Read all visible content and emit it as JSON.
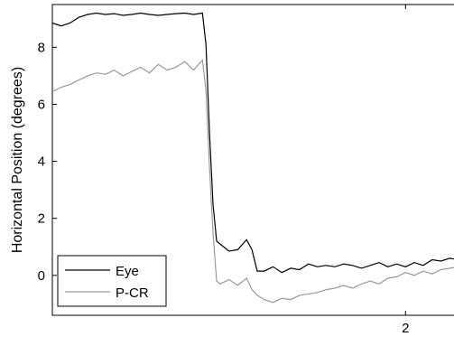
{
  "chart_data": {
    "type": "line",
    "title": "",
    "xlabel": "",
    "ylabel": "Horizontal Position (degrees)",
    "xlim": [
      0.0,
      2.3
    ],
    "ylim": [
      -1.4,
      9.5
    ],
    "yticks": [
      0,
      2,
      4,
      6,
      8
    ],
    "xticks": [
      2
    ],
    "grid": false,
    "legend": "bottom-left",
    "series": [
      {
        "name": "Eye",
        "color": "#000000",
        "x": [
          0.0,
          0.05,
          0.1,
          0.15,
          0.2,
          0.25,
          0.3,
          0.35,
          0.4,
          0.45,
          0.5,
          0.55,
          0.6,
          0.65,
          0.7,
          0.75,
          0.8,
          0.85,
          0.87,
          0.89,
          0.91,
          0.93,
          0.95,
          1.0,
          1.05,
          1.1,
          1.13,
          1.16,
          1.2,
          1.25,
          1.3,
          1.35,
          1.4,
          1.45,
          1.5,
          1.55,
          1.6,
          1.65,
          1.7,
          1.75,
          1.8,
          1.85,
          1.9,
          1.95,
          2.0,
          2.05,
          2.1,
          2.15,
          2.2,
          2.25,
          2.3
        ],
        "values": [
          8.85,
          8.75,
          8.85,
          9.05,
          9.15,
          9.2,
          9.15,
          9.18,
          9.12,
          9.15,
          9.2,
          9.15,
          9.12,
          9.15,
          9.18,
          9.2,
          9.15,
          9.2,
          8.1,
          5.0,
          2.5,
          1.2,
          1.1,
          0.85,
          0.9,
          1.25,
          0.9,
          0.15,
          0.15,
          0.3,
          0.1,
          0.25,
          0.2,
          0.4,
          0.3,
          0.35,
          0.3,
          0.4,
          0.35,
          0.25,
          0.35,
          0.45,
          0.3,
          0.4,
          0.3,
          0.45,
          0.35,
          0.55,
          0.5,
          0.6,
          0.55
        ]
      },
      {
        "name": "P-CR",
        "color": "#999999",
        "x": [
          0.0,
          0.05,
          0.1,
          0.15,
          0.2,
          0.25,
          0.3,
          0.35,
          0.4,
          0.45,
          0.5,
          0.55,
          0.6,
          0.65,
          0.7,
          0.75,
          0.8,
          0.85,
          0.87,
          0.89,
          0.91,
          0.93,
          0.95,
          1.0,
          1.05,
          1.1,
          1.13,
          1.16,
          1.2,
          1.25,
          1.3,
          1.35,
          1.4,
          1.45,
          1.5,
          1.55,
          1.6,
          1.65,
          1.7,
          1.75,
          1.8,
          1.85,
          1.9,
          1.95,
          2.0,
          2.05,
          2.1,
          2.15,
          2.2,
          2.25,
          2.3
        ],
        "values": [
          6.45,
          6.6,
          6.7,
          6.85,
          7.0,
          7.1,
          7.05,
          7.2,
          7.0,
          7.15,
          7.3,
          7.1,
          7.4,
          7.2,
          7.3,
          7.5,
          7.2,
          7.55,
          6.5,
          3.8,
          1.5,
          -0.2,
          -0.3,
          -0.15,
          -0.35,
          -0.1,
          -0.5,
          -0.7,
          -0.85,
          -0.95,
          -0.8,
          -0.85,
          -0.7,
          -0.65,
          -0.6,
          -0.5,
          -0.45,
          -0.35,
          -0.45,
          -0.3,
          -0.2,
          -0.3,
          -0.1,
          -0.05,
          0.1,
          0.0,
          0.15,
          0.05,
          0.2,
          0.25,
          0.3
        ]
      }
    ]
  }
}
